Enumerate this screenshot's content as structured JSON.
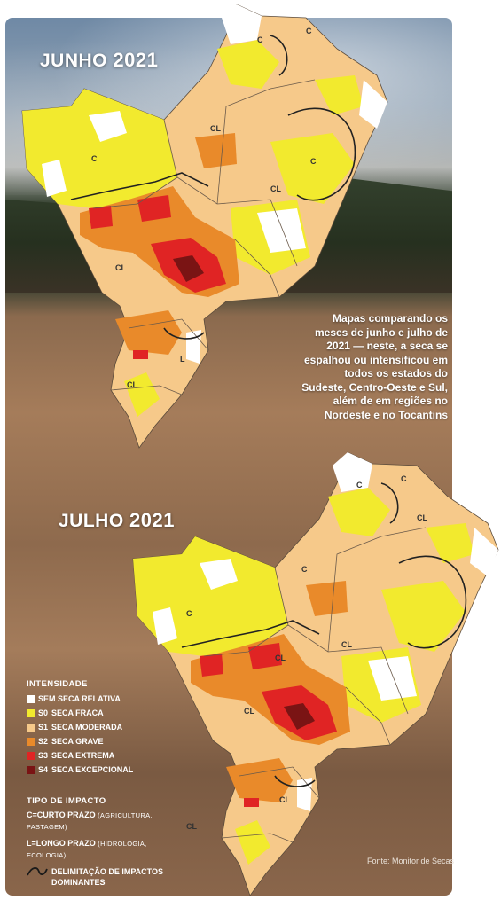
{
  "maps": [
    {
      "id": "junho",
      "month": "JUNHO",
      "year": "2021"
    },
    {
      "id": "julho",
      "month": "JULHO",
      "year": "2021"
    }
  ],
  "caption": "Mapas comparando os meses de junho e julho de 2021 — neste, a seca se espalhou ou intensificou em todos os estados do Sudeste, Centro-Oeste e Sul, além de em regiões no Nordeste e no Tocantins",
  "legend": {
    "intensity_title": "INTENSIDADE",
    "levels": [
      {
        "code": "",
        "label": "SEM SECA RELATIVA",
        "color": "#ffffff"
      },
      {
        "code": "S0",
        "label": "SECA FRACA",
        "color": "#f2ea2e"
      },
      {
        "code": "S1",
        "label": "SECA MODERADA",
        "color": "#f6c98a"
      },
      {
        "code": "S2",
        "label": "SECA GRAVE",
        "color": "#e98a2a"
      },
      {
        "code": "S3",
        "label": "SECA EXTREMA",
        "color": "#e02424"
      },
      {
        "code": "S4",
        "label": "SECA EXCEPCIONAL",
        "color": "#7a1414"
      }
    ],
    "impact_title": "TIPO DE IMPACTO",
    "impacts": [
      {
        "main": "C=CURTO PRAZO",
        "detail": "(AGRICULTURA, PASTAGEM)"
      },
      {
        "main": "L=LONGO PRAZO",
        "detail": "(HIDROLOGIA, ECOLOGIA)"
      }
    ],
    "boundary_label": "DELIMITAÇÃO DE IMPACTOS DOMINANTES"
  },
  "map_labels": {
    "c": "C",
    "cl": "CL",
    "l": "L"
  },
  "source": "Fonte: Monitor de Secas"
}
